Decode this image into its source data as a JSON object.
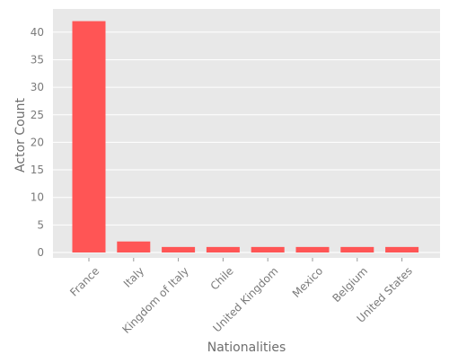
{
  "chart_data": {
    "type": "bar",
    "title": "",
    "xlabel": "Nationalities",
    "ylabel": "Actor Count",
    "categories": [
      "France",
      "Italy",
      "Kingdom of Italy",
      "Chile",
      "United Kingdom",
      "Mexico",
      "Belgium",
      "United States"
    ],
    "values": [
      42,
      2,
      1,
      1,
      1,
      1,
      1,
      1
    ],
    "yticks": [
      0,
      5,
      10,
      15,
      20,
      25,
      30,
      35,
      40
    ],
    "ylim": [
      0,
      44
    ],
    "grid": true,
    "legend": "none",
    "colors": {
      "bar": "#ff5555",
      "plot_background": "#e8e8e8",
      "grid": "#ffffff",
      "tick_text": "#7a7a7a",
      "axis_label": "#6e6e6e"
    }
  }
}
